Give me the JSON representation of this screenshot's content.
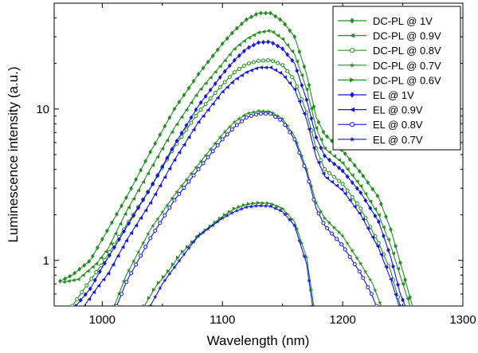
{
  "chart_data": {
    "type": "line",
    "title": "",
    "xlabel": "Wavelength (nm)",
    "ylabel": "Luminescence intensity (a.u.)",
    "x_scale": "linear",
    "y_scale": "log",
    "xlim": [
      960,
      1300
    ],
    "ylim": [
      0.5,
      50
    ],
    "xticks": [
      1000,
      1100,
      1200,
      1300
    ],
    "xtick_labels": [
      "1000",
      "1100",
      "1200",
      "1300"
    ],
    "yticks": [
      1,
      10
    ],
    "ytick_labels": [
      "1",
      "10"
    ],
    "legend_position": "top-right",
    "colors": {
      "green": "#238f23",
      "blue": "#1515dc"
    },
    "series": [
      {
        "name": "DC-PL @ 1V",
        "color": "#238f23",
        "marker": "diamond",
        "points": [
          [
            965,
            0.73
          ],
          [
            975,
            0.8
          ],
          [
            990,
            1.0
          ],
          [
            1000,
            1.38
          ],
          [
            1020,
            2.6
          ],
          [
            1040,
            5.2
          ],
          [
            1060,
            10
          ],
          [
            1080,
            17
          ],
          [
            1100,
            27
          ],
          [
            1110,
            33
          ],
          [
            1120,
            39
          ],
          [
            1130,
            43
          ],
          [
            1140,
            43
          ],
          [
            1150,
            38
          ],
          [
            1160,
            30
          ],
          [
            1170,
            17
          ],
          [
            1178,
            8.8
          ],
          [
            1185,
            6.8
          ],
          [
            1200,
            5.3
          ],
          [
            1215,
            3.8
          ],
          [
            1230,
            2.6
          ],
          [
            1240,
            1.6
          ],
          [
            1250,
            0.85
          ],
          [
            1258,
            0.5
          ]
        ]
      },
      {
        "name": "DC-PL @ 0.9V",
        "color": "#238f23",
        "marker": "triangle-left",
        "points": [
          [
            968,
            0.72
          ],
          [
            980,
            0.75
          ],
          [
            995,
            0.95
          ],
          [
            1005,
            1.2
          ],
          [
            1020,
            2.1
          ],
          [
            1040,
            4.0
          ],
          [
            1060,
            7.5
          ],
          [
            1080,
            13
          ],
          [
            1100,
            20
          ],
          [
            1110,
            25
          ],
          [
            1120,
            29
          ],
          [
            1130,
            32
          ],
          [
            1140,
            33
          ],
          [
            1150,
            29
          ],
          [
            1160,
            23
          ],
          [
            1170,
            13.5
          ],
          [
            1178,
            7.5
          ],
          [
            1185,
            5.5
          ],
          [
            1200,
            4.4
          ],
          [
            1215,
            3.1
          ],
          [
            1230,
            2.0
          ],
          [
            1240,
            1.25
          ],
          [
            1250,
            0.7
          ],
          [
            1256,
            0.5
          ]
        ]
      },
      {
        "name": "DC-PL @ 0.8V",
        "color": "#238f23",
        "marker": "circle-open",
        "points": [
          [
            975,
            0.5
          ],
          [
            985,
            0.65
          ],
          [
            1000,
            0.95
          ],
          [
            1020,
            1.7
          ],
          [
            1040,
            3.0
          ],
          [
            1060,
            5.6
          ],
          [
            1080,
            9.5
          ],
          [
            1100,
            14.5
          ],
          [
            1110,
            17.5
          ],
          [
            1120,
            19.8
          ],
          [
            1130,
            20.8
          ],
          [
            1140,
            21
          ],
          [
            1150,
            19.5
          ],
          [
            1160,
            15.5
          ],
          [
            1170,
            9.5
          ],
          [
            1178,
            5.5
          ],
          [
            1185,
            4.0
          ],
          [
            1200,
            3.2
          ],
          [
            1215,
            2.2
          ],
          [
            1230,
            1.3
          ],
          [
            1240,
            0.85
          ],
          [
            1248,
            0.5
          ]
        ]
      },
      {
        "name": "DC-PL @ 0.7V",
        "color": "#238f23",
        "marker": "star",
        "points": [
          [
            1010,
            0.5
          ],
          [
            1020,
            0.8
          ],
          [
            1040,
            1.6
          ],
          [
            1060,
            2.7
          ],
          [
            1080,
            4.3
          ],
          [
            1100,
            6.8
          ],
          [
            1110,
            8.2
          ],
          [
            1120,
            9.3
          ],
          [
            1130,
            9.7
          ],
          [
            1140,
            9.6
          ],
          [
            1150,
            8.6
          ],
          [
            1160,
            6.6
          ],
          [
            1170,
            4.0
          ],
          [
            1178,
            2.4
          ],
          [
            1185,
            1.9
          ],
          [
            1200,
            1.45
          ],
          [
            1215,
            0.95
          ],
          [
            1225,
            0.7
          ],
          [
            1232,
            0.5
          ]
        ]
      },
      {
        "name": "DC-PL @ 0.6V",
        "color": "#238f23",
        "marker": "triangle-right",
        "points": [
          [
            1035,
            0.5
          ],
          [
            1045,
            0.68
          ],
          [
            1055,
            0.85
          ],
          [
            1065,
            1.1
          ],
          [
            1080,
            1.45
          ],
          [
            1100,
            1.95
          ],
          [
            1110,
            2.2
          ],
          [
            1120,
            2.35
          ],
          [
            1130,
            2.4
          ],
          [
            1140,
            2.38
          ],
          [
            1150,
            2.2
          ],
          [
            1160,
            1.8
          ],
          [
            1170,
            1.05
          ],
          [
            1176,
            0.5
          ]
        ]
      },
      {
        "name": "EL @ 1V",
        "color": "#1515dc",
        "marker": "diamond",
        "points": [
          [
            978,
            0.5
          ],
          [
            990,
            0.65
          ],
          [
            1000,
            0.9
          ],
          [
            1020,
            1.65
          ],
          [
            1040,
            3.0
          ],
          [
            1060,
            5.8
          ],
          [
            1080,
            10.5
          ],
          [
            1100,
            17
          ],
          [
            1110,
            21
          ],
          [
            1120,
            25
          ],
          [
            1130,
            27.5
          ],
          [
            1140,
            27.8
          ],
          [
            1150,
            25
          ],
          [
            1160,
            20
          ],
          [
            1170,
            11.5
          ],
          [
            1178,
            6.5
          ],
          [
            1185,
            4.9
          ],
          [
            1200,
            3.9
          ],
          [
            1215,
            2.8
          ],
          [
            1230,
            1.8
          ],
          [
            1240,
            1.05
          ],
          [
            1248,
            0.6
          ],
          [
            1252,
            0.5
          ]
        ]
      },
      {
        "name": "EL @ 0.9V",
        "color": "#1515dc",
        "marker": "triangle-left",
        "points": [
          [
            985,
            0.5
          ],
          [
            995,
            0.65
          ],
          [
            1005,
            0.82
          ],
          [
            1020,
            1.35
          ],
          [
            1040,
            2.4
          ],
          [
            1060,
            4.6
          ],
          [
            1080,
            8.2
          ],
          [
            1100,
            13
          ],
          [
            1110,
            15.5
          ],
          [
            1120,
            17.5
          ],
          [
            1130,
            18.8
          ],
          [
            1140,
            18.8
          ],
          [
            1150,
            17
          ],
          [
            1160,
            13.5
          ],
          [
            1170,
            8.5
          ],
          [
            1178,
            4.8
          ],
          [
            1185,
            3.6
          ],
          [
            1200,
            2.9
          ],
          [
            1215,
            2.0
          ],
          [
            1230,
            1.2
          ],
          [
            1240,
            0.75
          ],
          [
            1247,
            0.5
          ]
        ]
      },
      {
        "name": "EL @ 0.8V",
        "color": "#1515dc",
        "marker": "circle-open",
        "points": [
          [
            1012,
            0.5
          ],
          [
            1020,
            0.72
          ],
          [
            1040,
            1.4
          ],
          [
            1060,
            2.5
          ],
          [
            1080,
            4.0
          ],
          [
            1100,
            6.3
          ],
          [
            1110,
            7.6
          ],
          [
            1120,
            8.8
          ],
          [
            1130,
            9.3
          ],
          [
            1140,
            9.3
          ],
          [
            1150,
            8.3
          ],
          [
            1160,
            6.3
          ],
          [
            1170,
            3.8
          ],
          [
            1178,
            2.2
          ],
          [
            1185,
            1.7
          ],
          [
            1200,
            1.25
          ],
          [
            1215,
            0.82
          ],
          [
            1224,
            0.6
          ],
          [
            1228,
            0.5
          ]
        ]
      },
      {
        "name": "EL @ 0.7V",
        "color": "#1515dc",
        "marker": "star",
        "points": [
          [
            1040,
            0.5
          ],
          [
            1050,
            0.7
          ],
          [
            1060,
            0.9
          ],
          [
            1070,
            1.15
          ],
          [
            1080,
            1.45
          ],
          [
            1100,
            1.9
          ],
          [
            1110,
            2.1
          ],
          [
            1120,
            2.25
          ],
          [
            1130,
            2.3
          ],
          [
            1140,
            2.28
          ],
          [
            1150,
            2.1
          ],
          [
            1160,
            1.7
          ],
          [
            1170,
            0.95
          ],
          [
            1175,
            0.5
          ]
        ]
      }
    ]
  }
}
